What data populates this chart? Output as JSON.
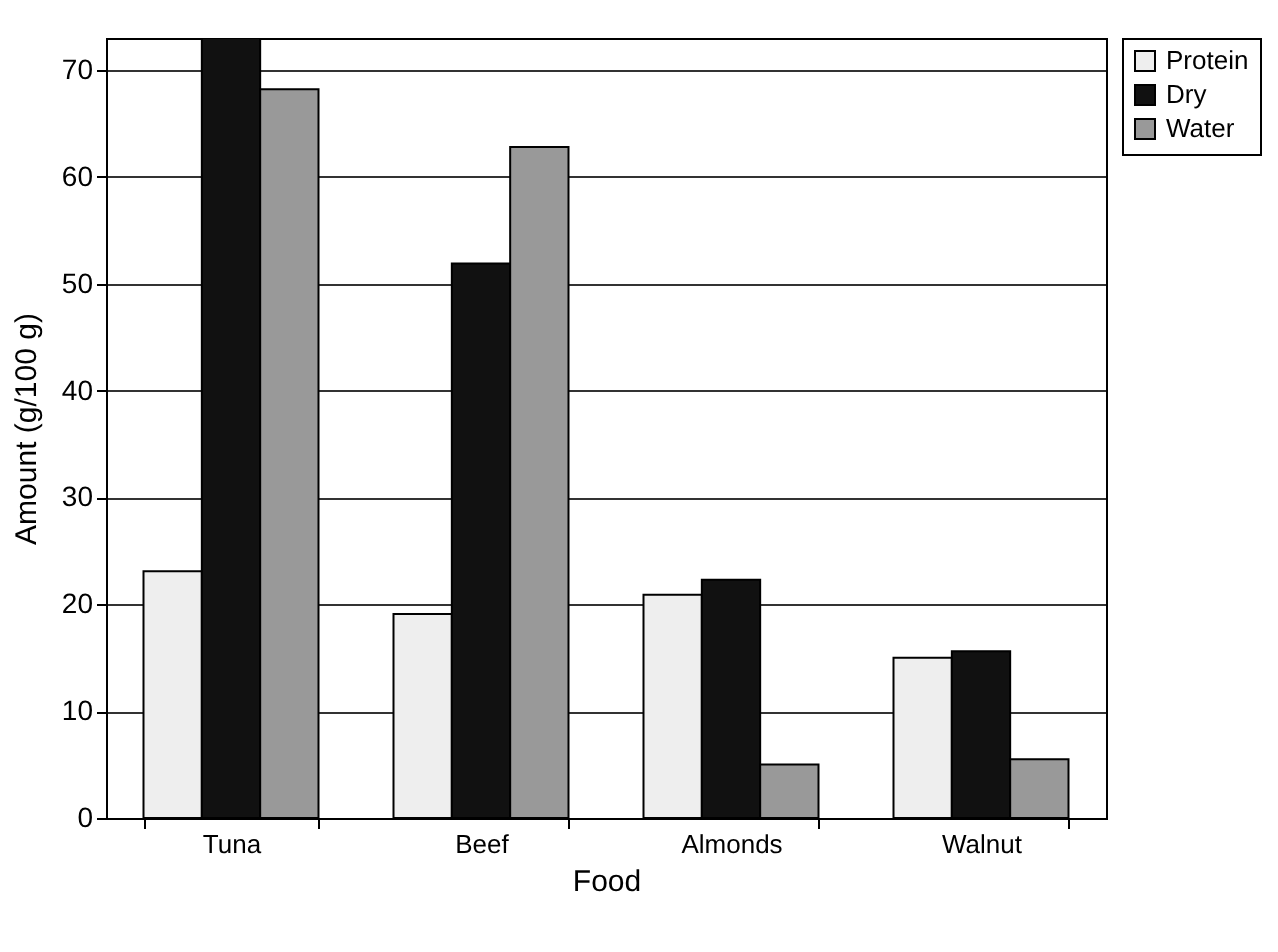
{
  "chart_data": {
    "type": "bar",
    "xlabel": "Food",
    "ylabel": "Amount (g/100 g)",
    "categories": [
      "Tuna",
      "Beef",
      "Almonds",
      "Walnut"
    ],
    "series": [
      {
        "name": "Protein",
        "color": "#eeeeee",
        "values": [
          23.1,
          19.1,
          20.9,
          15.0
        ]
      },
      {
        "name": "Dry",
        "color": "#111111",
        "values": [
          73,
          51.9,
          22.3,
          15.6
        ]
      },
      {
        "name": "Water",
        "color": "#999999",
        "values": [
          68.2,
          62.8,
          5.0,
          5.5
        ]
      }
    ],
    "ylim": [
      0,
      73
    ],
    "yticks": [
      0,
      10,
      20,
      30,
      40,
      50,
      60,
      70
    ],
    "grid": "y",
    "legend": "right"
  }
}
